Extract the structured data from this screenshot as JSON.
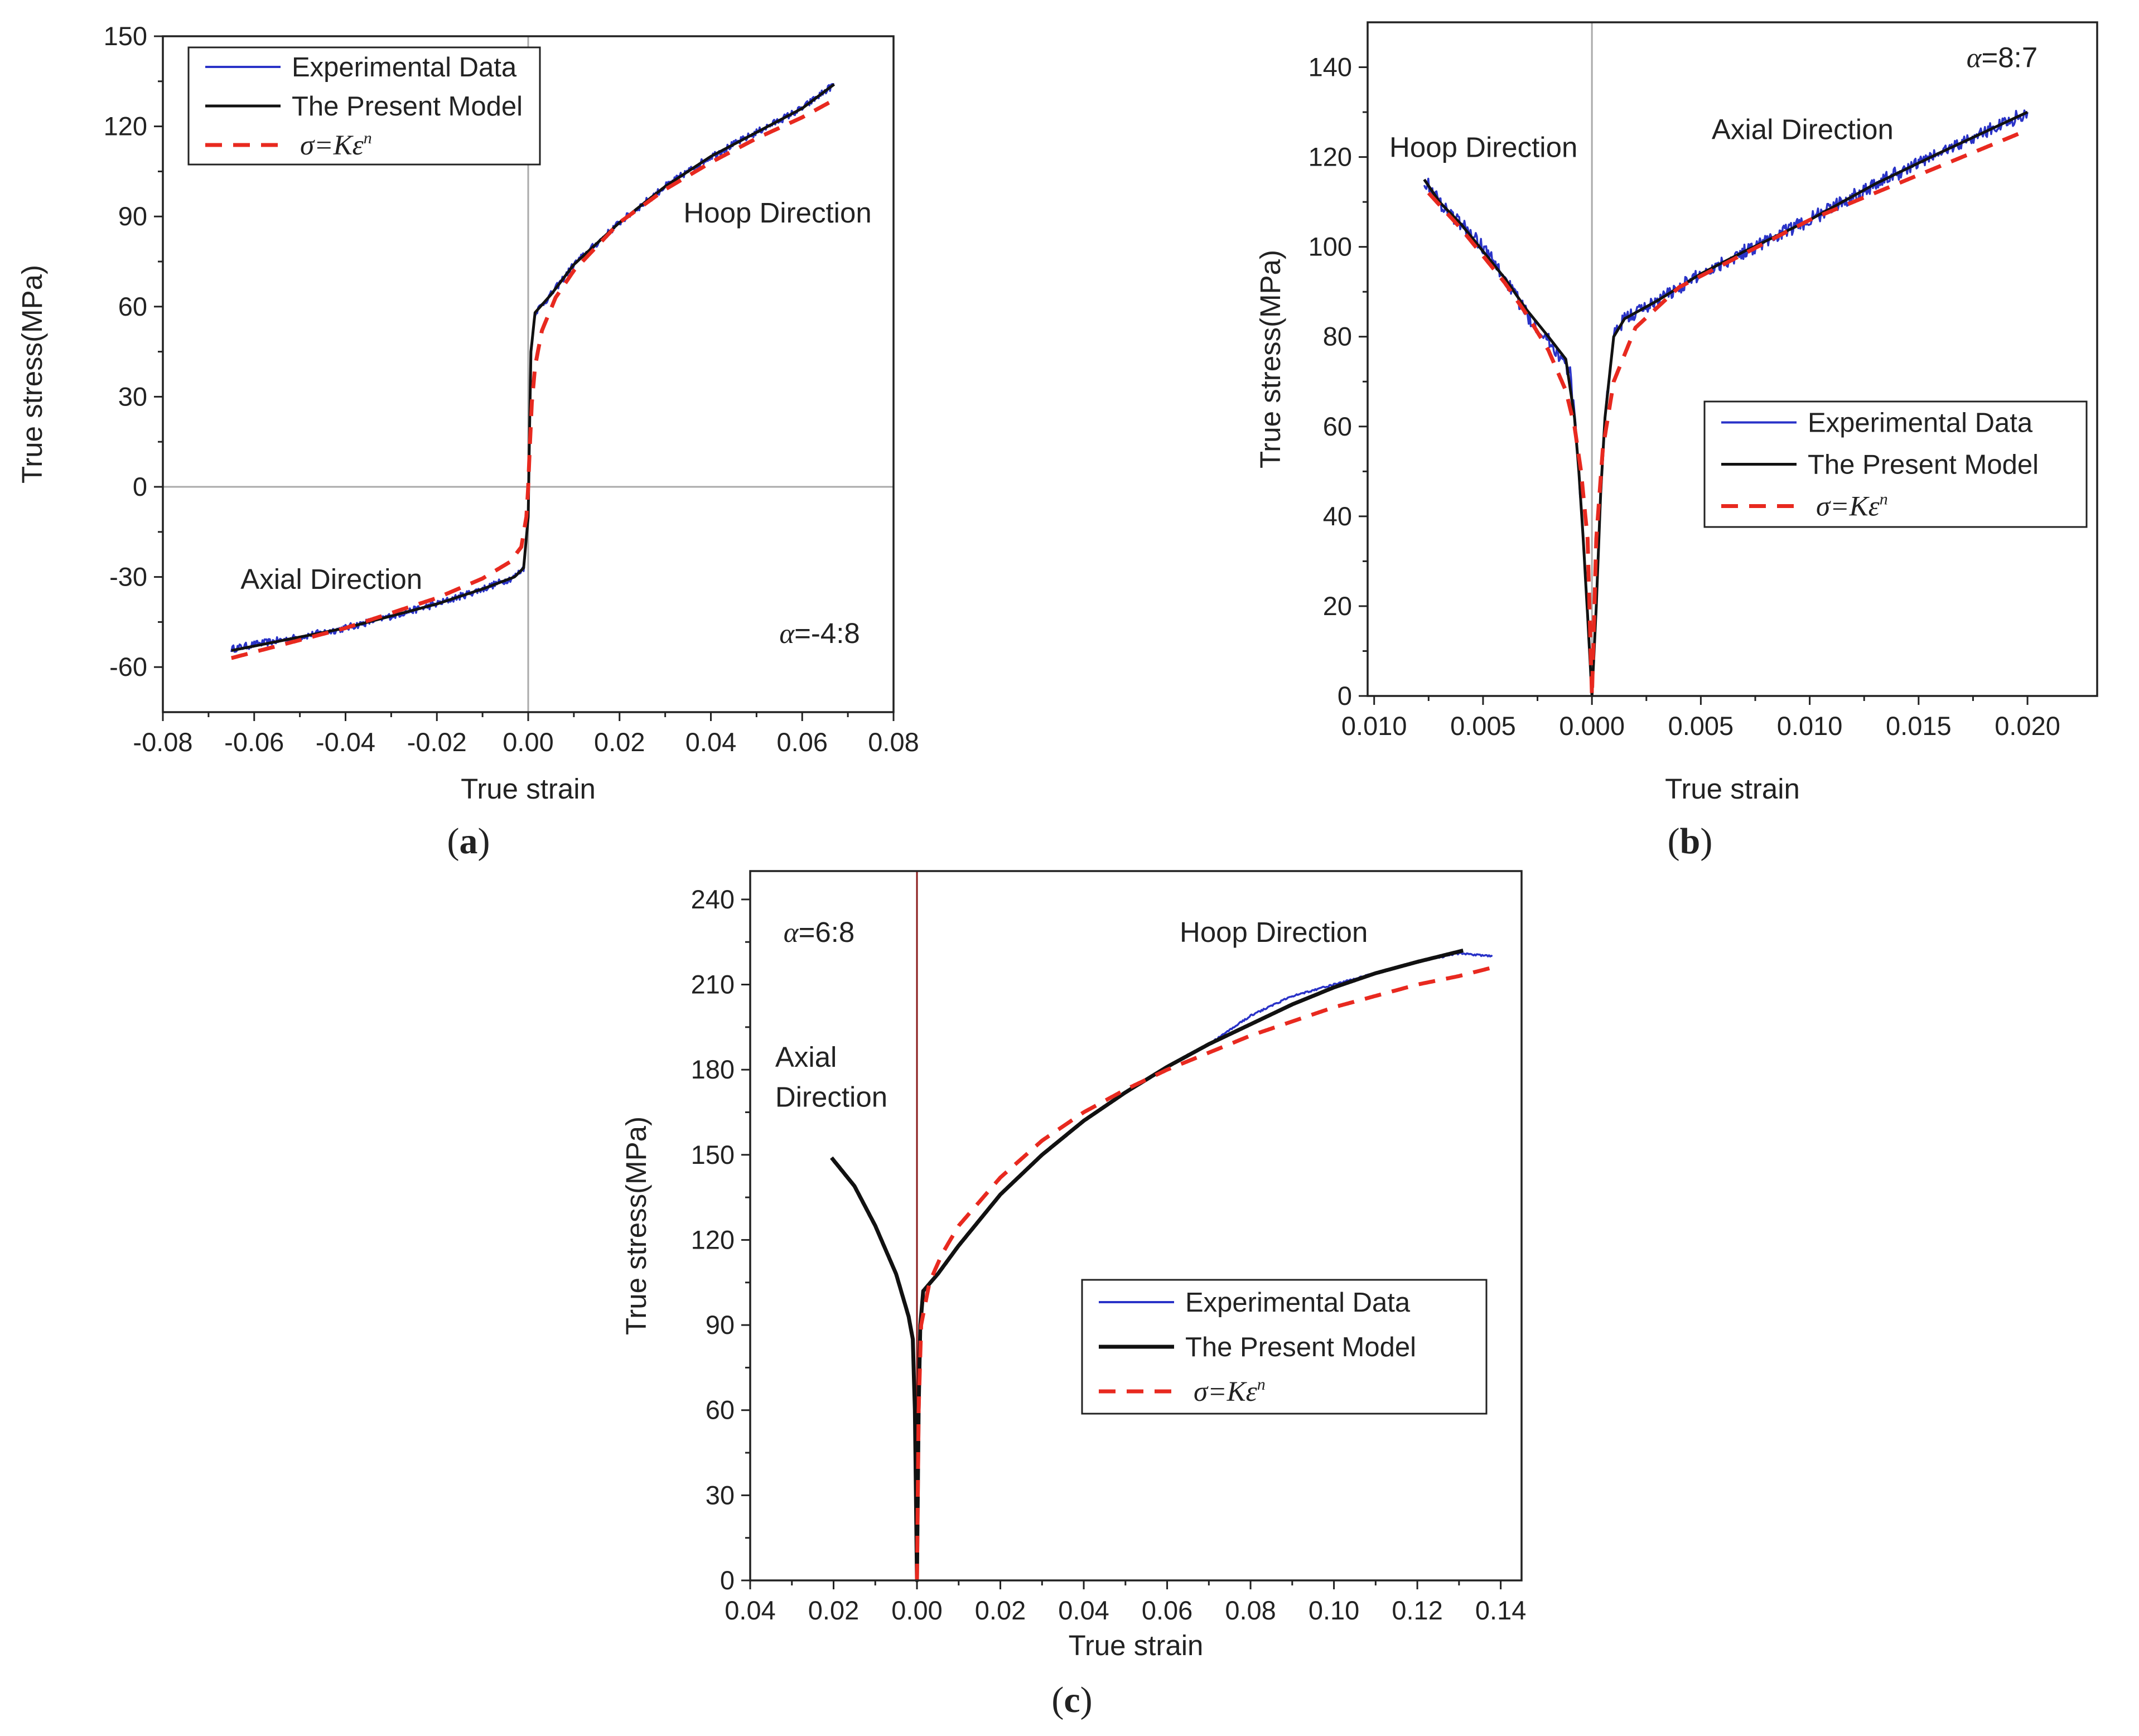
{
  "colors": {
    "experimental": "#2a33c8",
    "model": "#111111",
    "power_law": "#e8291f",
    "zero_line_gray": "#aaaaaa",
    "zero_line_red": "#8a1a1a"
  },
  "chart_data": [
    {
      "id": "a",
      "type": "line",
      "panel_label": "a",
      "xlabel": "True strain",
      "ylabel": "True stress(MPa)",
      "xlim": [
        -0.08,
        0.08
      ],
      "ylim": [
        -75,
        150
      ],
      "xticks": [
        -0.08,
        -0.06,
        -0.04,
        -0.02,
        0.0,
        0.02,
        0.04,
        0.06,
        0.08
      ],
      "xtick_labels": [
        "-0.08",
        "-0.06",
        "-0.04",
        "-0.02",
        "0.00",
        "0.02",
        "0.04",
        "0.06",
        "0.08"
      ],
      "yticks": [
        -60,
        -30,
        0,
        30,
        60,
        90,
        120,
        150
      ],
      "ytick_labels": [
        "-60",
        "-30",
        "0",
        "30",
        "60",
        "90",
        "120",
        "150"
      ],
      "legend": [
        "Experimental Data",
        "The Present Model",
        "σ=Kε"
      ],
      "legend_superscript": "n",
      "legend_position": "top-left",
      "annotations": [
        {
          "text": "Hoop Direction",
          "x": 0.034,
          "y": 88
        },
        {
          "text": "Axial Direction",
          "x": -0.063,
          "y": -34
        }
      ],
      "ratio_label": {
        "greek": "α",
        "value": "=-4:8",
        "x": 0.055,
        "y": -52
      },
      "zero_line_x": true,
      "zero_line_y": true,
      "series": [
        {
          "name": "Experimental Data",
          "noise": 1.2,
          "points": [
            [
              -0.065,
              -54
            ],
            [
              -0.06,
              -52.5
            ],
            [
              -0.05,
              -50
            ],
            [
              -0.04,
              -47
            ],
            [
              -0.03,
              -43
            ],
            [
              -0.02,
              -39
            ],
            [
              -0.01,
              -34
            ],
            [
              -0.003,
              -30
            ],
            [
              -0.001,
              -27
            ],
            [
              0.0,
              -10
            ],
            [
              0.0003,
              20
            ],
            [
              0.0006,
              45
            ],
            [
              0.0015,
              58
            ],
            [
              0.005,
              64
            ],
            [
              0.01,
              74
            ],
            [
              0.02,
              88
            ],
            [
              0.03,
              100
            ],
            [
              0.04,
              110
            ],
            [
              0.05,
              118
            ],
            [
              0.06,
              126
            ],
            [
              0.067,
              134
            ]
          ]
        },
        {
          "name": "The Present Model",
          "noise": 0,
          "points": [
            [
              -0.065,
              -54.5
            ],
            [
              -0.06,
              -53
            ],
            [
              -0.05,
              -50
            ],
            [
              -0.04,
              -47
            ],
            [
              -0.03,
              -43
            ],
            [
              -0.02,
              -39
            ],
            [
              -0.01,
              -34
            ],
            [
              -0.003,
              -30
            ],
            [
              -0.001,
              -27
            ],
            [
              0.0,
              -10
            ],
            [
              0.0003,
              20
            ],
            [
              0.0006,
              45
            ],
            [
              0.0015,
              58
            ],
            [
              0.005,
              64
            ],
            [
              0.01,
              74
            ],
            [
              0.02,
              88
            ],
            [
              0.03,
              100
            ],
            [
              0.04,
              110
            ],
            [
              0.05,
              118
            ],
            [
              0.06,
              126
            ],
            [
              0.067,
              134
            ]
          ]
        },
        {
          "name": "σ=Kεⁿ",
          "noise": 0,
          "points": [
            [
              -0.065,
              -57
            ],
            [
              -0.06,
              -55
            ],
            [
              -0.05,
              -51
            ],
            [
              -0.04,
              -47
            ],
            [
              -0.03,
              -42
            ],
            [
              -0.02,
              -37
            ],
            [
              -0.01,
              -30.5
            ],
            [
              -0.004,
              -25
            ],
            [
              -0.0015,
              -20
            ],
            [
              -0.0004,
              -10
            ],
            [
              0.0,
              0
            ],
            [
              0.0004,
              15
            ],
            [
              0.0008,
              28
            ],
            [
              0.0015,
              40
            ],
            [
              0.003,
              52
            ],
            [
              0.006,
              63
            ],
            [
              0.01,
              72
            ],
            [
              0.02,
              88
            ],
            [
              0.03,
              99
            ],
            [
              0.04,
              108
            ],
            [
              0.05,
              116
            ],
            [
              0.06,
              123
            ],
            [
              0.066,
              128
            ]
          ]
        }
      ]
    },
    {
      "id": "b",
      "type": "line",
      "panel_label": "b",
      "xlabel": "True strain",
      "ylabel": "True stress(MPa)",
      "xlim": [
        -0.0103,
        0.0232
      ],
      "ylim": [
        0,
        150
      ],
      "xticks": [
        -0.01,
        -0.005,
        0.0,
        0.005,
        0.01,
        0.015,
        0.02
      ],
      "xtick_labels": [
        "0.010",
        "0.005",
        "0.000",
        "0.005",
        "0.010",
        "0.015",
        "0.020"
      ],
      "yticks": [
        0,
        20,
        40,
        60,
        80,
        100,
        120,
        140
      ],
      "ytick_labels": [
        "0",
        "20",
        "40",
        "60",
        "80",
        "100",
        "120",
        "140"
      ],
      "legend": [
        "Experimental Data",
        "The Present Model",
        "σ=Kε"
      ],
      "legend_superscript": "n",
      "legend_position": "center-right",
      "annotations": [
        {
          "text": "Hoop Direction",
          "x": -0.0093,
          "y": 120
        },
        {
          "text": "Axial Direction",
          "x": 0.0055,
          "y": 124
        }
      ],
      "ratio_label": {
        "greek": "α",
        "value": "=8:7",
        "x": 0.0172,
        "y": 140
      },
      "zero_line_x": true,
      "zero_line_y": false,
      "series": [
        {
          "name": "Experimental Data",
          "noise": 1.6,
          "points": [
            [
              -0.0077,
              115
            ],
            [
              -0.007,
              110
            ],
            [
              -0.006,
              105
            ],
            [
              -0.005,
              100
            ],
            [
              -0.004,
              93
            ],
            [
              -0.003,
              85
            ],
            [
              -0.0018,
              78
            ],
            [
              -0.001,
              72
            ],
            [
              -0.0008,
              62
            ],
            [
              -0.0006,
              50
            ],
            [
              -0.0004,
              35
            ],
            [
              -0.0002,
              18
            ],
            [
              0.0,
              0
            ],
            [
              0.0002,
              20
            ],
            [
              0.0004,
              45
            ],
            [
              0.0006,
              62
            ],
            [
              0.001,
              80
            ],
            [
              0.0015,
              84
            ],
            [
              0.003,
              88
            ],
            [
              0.005,
              94
            ],
            [
              0.007,
              99
            ],
            [
              0.01,
              106
            ],
            [
              0.013,
              114
            ],
            [
              0.016,
              121
            ],
            [
              0.02,
              130
            ]
          ]
        },
        {
          "name": "The Present Model",
          "noise": 0,
          "points": [
            [
              -0.0077,
              115
            ],
            [
              -0.007,
              110
            ],
            [
              -0.006,
              105
            ],
            [
              -0.005,
              99
            ],
            [
              -0.004,
              93
            ],
            [
              -0.003,
              86
            ],
            [
              -0.002,
              80
            ],
            [
              -0.0012,
              75
            ],
            [
              -0.0008,
              62
            ],
            [
              -0.0006,
              50
            ],
            [
              -0.0004,
              35
            ],
            [
              -0.0002,
              18
            ],
            [
              0.0,
              0
            ],
            [
              0.0002,
              20
            ],
            [
              0.0004,
              45
            ],
            [
              0.0006,
              62
            ],
            [
              0.001,
              80
            ],
            [
              0.0015,
              84
            ],
            [
              0.003,
              88
            ],
            [
              0.005,
              94
            ],
            [
              0.007,
              99
            ],
            [
              0.01,
              106
            ],
            [
              0.013,
              114
            ],
            [
              0.016,
              121
            ],
            [
              0.02,
              130
            ]
          ]
        },
        {
          "name": "σ=Kεⁿ",
          "noise": 0,
          "points": [
            [
              -0.0075,
              112
            ],
            [
              -0.006,
              104
            ],
            [
              -0.005,
              98
            ],
            [
              -0.004,
              92
            ],
            [
              -0.003,
              85
            ],
            [
              -0.002,
              77
            ],
            [
              -0.0012,
              68
            ],
            [
              -0.0008,
              60
            ],
            [
              -0.0005,
              50
            ],
            [
              -0.0002,
              35
            ],
            [
              0.0,
              0
            ],
            [
              0.0002,
              35
            ],
            [
              0.0005,
              55
            ],
            [
              0.001,
              70
            ],
            [
              0.002,
              82
            ],
            [
              0.004,
              91
            ],
            [
              0.006,
              96
            ],
            [
              0.008,
              101
            ],
            [
              0.01,
              106
            ],
            [
              0.013,
              112
            ],
            [
              0.016,
              118
            ],
            [
              0.02,
              126
            ]
          ]
        }
      ]
    },
    {
      "id": "c",
      "type": "line",
      "panel_label": "c",
      "xlabel": "True strain",
      "ylabel": "True stress(MPa)",
      "xlim": [
        -0.04,
        0.145
      ],
      "ylim": [
        0,
        250
      ],
      "xticks": [
        -0.04,
        -0.02,
        0.0,
        0.02,
        0.04,
        0.06,
        0.08,
        0.1,
        0.12,
        0.14
      ],
      "xtick_labels": [
        "0.04",
        "0.02",
        "0.00",
        "0.02",
        "0.04",
        "0.06",
        "0.08",
        "0.10",
        "0.12",
        "0.14"
      ],
      "yticks": [
        0,
        30,
        60,
        90,
        120,
        150,
        180,
        210,
        240
      ],
      "ytick_labels": [
        "0",
        "30",
        "60",
        "90",
        "120",
        "150",
        "180",
        "210",
        "240"
      ],
      "legend": [
        "Experimental Data",
        "The Present Model",
        "σ=Kε"
      ],
      "legend_superscript": "n",
      "legend_position": "lower-right",
      "annotations": [
        {
          "text": "Hoop Direction",
          "x": 0.063,
          "y": 225
        },
        {
          "text": "Axial",
          "x": -0.034,
          "y": 181
        },
        {
          "text": "Direction",
          "x": -0.034,
          "y": 167
        }
      ],
      "ratio_label": {
        "greek": "α",
        "value": "=6:8",
        "x": -0.032,
        "y": 225
      },
      "zero_line_x": true,
      "zero_line_y": false,
      "series": [
        {
          "name": "Experimental Data",
          "noise": 0.3,
          "points": [
            [
              -0.0205,
              149
            ],
            [
              -0.015,
              139
            ],
            [
              -0.01,
              125
            ],
            [
              -0.005,
              108
            ],
            [
              -0.002,
              93
            ],
            [
              -0.001,
              85
            ],
            [
              -0.0005,
              60
            ],
            [
              0.0,
              0
            ],
            [
              0.0004,
              60
            ],
            [
              0.0008,
              90
            ],
            [
              0.0015,
              102
            ],
            [
              0.005,
              108
            ],
            [
              0.01,
              118
            ],
            [
              0.02,
              136
            ],
            [
              0.03,
              150
            ],
            [
              0.04,
              162
            ],
            [
              0.05,
              172
            ],
            [
              0.06,
              181
            ],
            [
              0.07,
              189
            ],
            [
              0.08,
              199
            ],
            [
              0.09,
              206
            ],
            [
              0.1,
              210
            ],
            [
              0.11,
              214
            ],
            [
              0.12,
              218
            ],
            [
              0.13,
              221
            ],
            [
              0.138,
              220
            ]
          ]
        },
        {
          "name": "The Present Model",
          "noise": 0,
          "points": [
            [
              -0.0205,
              149
            ],
            [
              -0.015,
              139
            ],
            [
              -0.01,
              125
            ],
            [
              -0.005,
              108
            ],
            [
              -0.002,
              93
            ],
            [
              -0.001,
              85
            ],
            [
              -0.0005,
              60
            ],
            [
              0.0,
              0
            ],
            [
              0.0004,
              60
            ],
            [
              0.0008,
              90
            ],
            [
              0.0015,
              102
            ],
            [
              0.005,
              108
            ],
            [
              0.01,
              118
            ],
            [
              0.02,
              136
            ],
            [
              0.03,
              150
            ],
            [
              0.04,
              162
            ],
            [
              0.05,
              172
            ],
            [
              0.06,
              181
            ],
            [
              0.07,
              189
            ],
            [
              0.08,
              196
            ],
            [
              0.09,
              203
            ],
            [
              0.1,
              209
            ],
            [
              0.11,
              214
            ],
            [
              0.12,
              218
            ],
            [
              0.131,
              222
            ]
          ]
        },
        {
          "name": "σ=Kεⁿ",
          "noise": 0,
          "points": [
            [
              0.0,
              0
            ],
            [
              0.0004,
              60
            ],
            [
              0.001,
              90
            ],
            [
              0.003,
              105
            ],
            [
              0.006,
              115
            ],
            [
              0.01,
              125
            ],
            [
              0.02,
              142
            ],
            [
              0.03,
              155
            ],
            [
              0.04,
              165
            ],
            [
              0.05,
              173
            ],
            [
              0.06,
              180
            ],
            [
              0.07,
              186
            ],
            [
              0.08,
              192
            ],
            [
              0.09,
              197
            ],
            [
              0.1,
              202
            ],
            [
              0.11,
              206
            ],
            [
              0.12,
              210
            ],
            [
              0.13,
              213
            ],
            [
              0.138,
              216
            ]
          ]
        }
      ]
    }
  ]
}
